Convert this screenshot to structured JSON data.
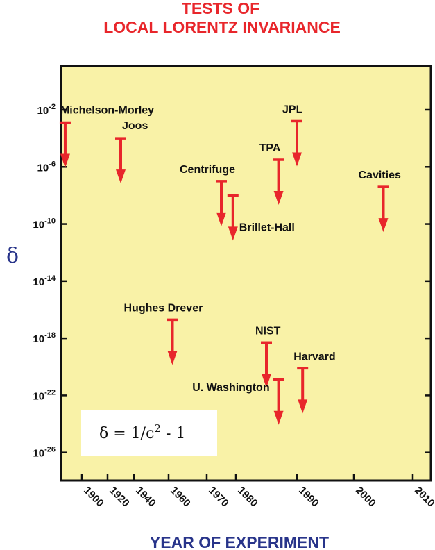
{
  "colors": {
    "plot_background": "#f9f2a7",
    "arrow": "#e8262b",
    "title": "#e8262b",
    "axis_label": "#28348a",
    "formula_box": "#ffffff"
  },
  "chart_data": {
    "type": "scatter",
    "title_lines": [
      "TESTS OF",
      "LOCAL LORENTZ INVARIANCE"
    ],
    "xlabel": "YEAR OF EXPERIMENT",
    "ylabel": "δ",
    "y_scale": "log",
    "xlim": [
      1885,
      2015
    ],
    "ylim_exponent": [
      -28,
      0
    ],
    "xticks": [
      {
        "label": "1900",
        "value": 1900
      },
      {
        "label": "1920",
        "value": 1920
      },
      {
        "label": "1940",
        "value": 1940
      },
      {
        "label": "1960",
        "value": 1960
      },
      {
        "label": "1970",
        "value": 1970
      },
      {
        "label": "1980",
        "value": 1980
      },
      {
        "label": "1990",
        "value": 1990
      },
      {
        "label": "2000",
        "value": 2000
      },
      {
        "label": "2010",
        "value": 2010
      }
    ],
    "yticks": [
      {
        "base": "10",
        "exp": "-2",
        "value": -2
      },
      {
        "base": "10",
        "exp": "-6",
        "value": -6
      },
      {
        "base": "10",
        "exp": "-10",
        "value": -10
      },
      {
        "base": "10",
        "exp": "-14",
        "value": -14
      },
      {
        "base": "10",
        "exp": "-18",
        "value": -18
      },
      {
        "base": "10",
        "exp": "-22",
        "value": -22
      },
      {
        "base": "10",
        "exp": "-26",
        "value": -26
      }
    ],
    "grid": false,
    "formula": {
      "lhs": "δ = 1/c",
      "sup": "2",
      "rhs": " - 1"
    },
    "marker": "upper-limit-arrow",
    "points": [
      {
        "label": "Michelson-Morley",
        "year": 1887,
        "upper_limit_exponent": -2.9,
        "label_position": "above-right"
      },
      {
        "label": "Joos",
        "year": 1930,
        "upper_limit_exponent": -4.0,
        "label_position": "above-right"
      },
      {
        "label": "Hughes Drever",
        "year": 1961,
        "upper_limit_exponent": -16.7,
        "label_position": "above"
      },
      {
        "label": "Centrifuge",
        "year": 1975,
        "upper_limit_exponent": -7.0,
        "label_position": "above-left"
      },
      {
        "label": "Brillet-Hall",
        "year": 1979,
        "upper_limit_exponent": -8.0,
        "label_position": "below-right"
      },
      {
        "label": "NIST",
        "year": 1985,
        "upper_limit_exponent": -18.3,
        "label_position": "above"
      },
      {
        "label": "TPA",
        "year": 1987,
        "upper_limit_exponent": -5.5,
        "label_position": "above"
      },
      {
        "label": "U. Washington",
        "year": 1987,
        "upper_limit_exponent": -20.9,
        "label_position": "left"
      },
      {
        "label": "Harvard",
        "year": 1991,
        "upper_limit_exponent": -20.1,
        "label_position": "above-right"
      },
      {
        "label": "JPL",
        "year": 1990,
        "upper_limit_exponent": -2.8,
        "label_position": "above"
      },
      {
        "label": "Cavities",
        "year": 2005,
        "upper_limit_exponent": -7.4,
        "label_position": "above"
      }
    ]
  }
}
